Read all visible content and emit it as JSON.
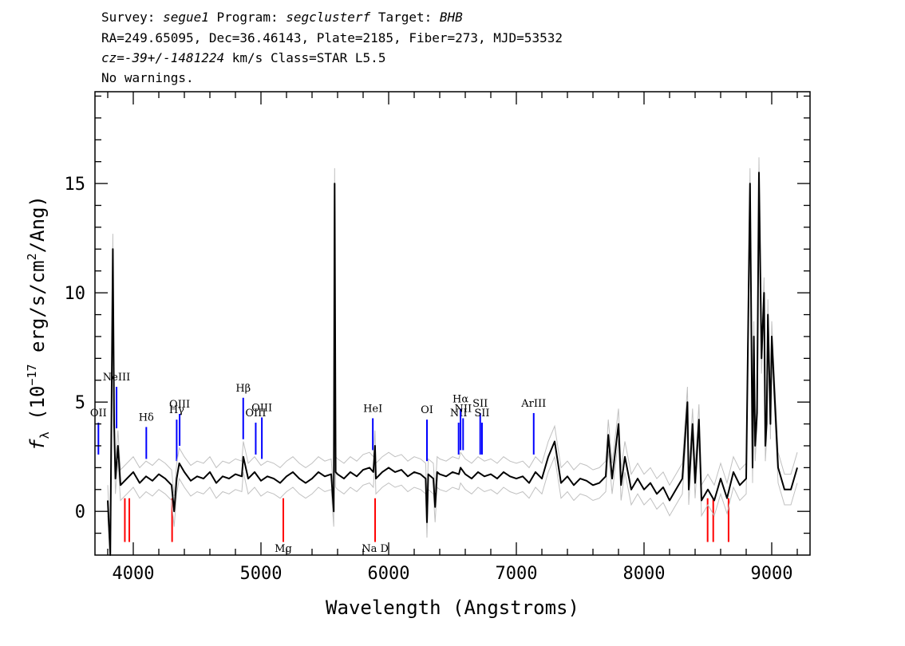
{
  "header": {
    "survey_label": "Survey:",
    "survey": "segue1",
    "program_label": "Program:",
    "program": "segclusterf",
    "target_label": "Target:",
    "target": "BHB",
    "line2": "RA=249.65095, Dec=36.46143, Plate=2185, Fiber=273, MJD=53532",
    "cz_label": "cz=",
    "cz_value": "-39+/-1481224",
    "cz_unit": "km/s",
    "class_text": "Class=STAR L5.5",
    "warnings": "No warnings."
  },
  "chart_data": {
    "type": "line",
    "xlabel": "Wavelength (Angstroms)",
    "ylabel_parts": [
      "f",
      "λ",
      " (10",
      "−17",
      " erg/s/cm",
      "2",
      "/Ang)"
    ],
    "xlim": [
      3700,
      9300
    ],
    "ylim": [
      -2,
      19.2
    ],
    "xticks": [
      4000,
      5000,
      6000,
      7000,
      8000,
      9000
    ],
    "xtick_labels": [
      "4000",
      "5000",
      "6000",
      "7000",
      "8000",
      "9000"
    ],
    "yticks": [
      0,
      5,
      10,
      15
    ],
    "ytick_labels": [
      "0",
      "5",
      "10",
      "15"
    ],
    "grid": false,
    "colors": {
      "spectrum": "#000000",
      "error": "#c0c0c0",
      "emission": "#0000ff",
      "absorption": "#ff0000"
    },
    "series": [
      {
        "x": [
          3800,
          3820,
          3840,
          3850,
          3860,
          3880,
          3900,
          3950,
          4000,
          4050,
          4100,
          4150,
          4200,
          4250,
          4300,
          4320,
          4340,
          4360,
          4400,
          4450,
          4500,
          4550,
          4600,
          4650,
          4700,
          4750,
          4800,
          4850,
          4862,
          4900,
          4950,
          5000,
          5050,
          5100,
          5150,
          5200,
          5250,
          5300,
          5350,
          5400,
          5450,
          5500,
          5550,
          5570,
          5577,
          5585,
          5600,
          5650,
          5700,
          5750,
          5800,
          5850,
          5880,
          5893,
          5900,
          5950,
          6000,
          6050,
          6100,
          6150,
          6200,
          6250,
          6290,
          6300,
          6310,
          6350,
          6364,
          6380,
          6400,
          6450,
          6500,
          6550,
          6563,
          6600,
          6650,
          6700,
          6750,
          6800,
          6850,
          6900,
          6950,
          7000,
          7050,
          7100,
          7150,
          7200,
          7250,
          7300,
          7350,
          7400,
          7450,
          7500,
          7550,
          7600,
          7650,
          7700,
          7720,
          7750,
          7800,
          7820,
          7850,
          7900,
          7950,
          8000,
          8050,
          8100,
          8150,
          8200,
          8250,
          8300,
          8340,
          8350,
          8380,
          8400,
          8430,
          8450,
          8500,
          8550,
          8600,
          8650,
          8700,
          8750,
          8800,
          8830,
          8850,
          8860,
          8870,
          8885,
          8900,
          8920,
          8940,
          8950,
          8960,
          8970,
          8990,
          9000,
          9050,
          9100,
          9150,
          9200
        ],
        "y": [
          0.5,
          -2,
          12,
          4,
          1.5,
          3,
          1.2,
          1.5,
          1.8,
          1.3,
          1.6,
          1.4,
          1.7,
          1.5,
          1.2,
          0,
          1.5,
          2.2,
          1.8,
          1.4,
          1.6,
          1.5,
          1.8,
          1.3,
          1.6,
          1.5,
          1.7,
          1.6,
          2.5,
          1.5,
          1.8,
          1.4,
          1.6,
          1.5,
          1.3,
          1.6,
          1.8,
          1.5,
          1.3,
          1.5,
          1.8,
          1.6,
          1.7,
          0,
          15,
          1.8,
          1.7,
          1.5,
          1.8,
          1.6,
          1.9,
          2.0,
          1.8,
          3.0,
          1.5,
          1.8,
          2.0,
          1.8,
          1.9,
          1.6,
          1.8,
          1.7,
          1.5,
          -0.5,
          1.7,
          1.5,
          0.2,
          1.8,
          1.7,
          1.6,
          1.8,
          1.7,
          2.0,
          1.7,
          1.5,
          1.8,
          1.6,
          1.7,
          1.5,
          1.8,
          1.6,
          1.5,
          1.6,
          1.3,
          1.8,
          1.5,
          2.5,
          3.2,
          1.3,
          1.6,
          1.2,
          1.5,
          1.4,
          1.2,
          1.3,
          1.6,
          3.5,
          1.5,
          4.0,
          1.2,
          2.5,
          1.0,
          1.5,
          1.0,
          1.3,
          0.8,
          1.1,
          0.5,
          1.0,
          1.5,
          5.0,
          1.0,
          4.0,
          1.3,
          4.2,
          0.5,
          1.0,
          0.5,
          1.5,
          0.6,
          1.8,
          1.2,
          1.5,
          15,
          2.0,
          8,
          3.0,
          4.5,
          15.5,
          7,
          10,
          3,
          4,
          9,
          4,
          8,
          2.0,
          1.0,
          1.0,
          2.0
        ]
      }
    ],
    "emission_lines": [
      {
        "label": "OII",
        "wave": 3727
      },
      {
        "label": "NeIII",
        "wave": 3869
      },
      {
        "label": "Hδ",
        "wave": 4102
      },
      {
        "label": "Hγ",
        "wave": 4340
      },
      {
        "label": "OIII",
        "wave": 4363
      },
      {
        "label": "Hβ",
        "wave": 4861
      },
      {
        "label": "OIII",
        "wave": 4959
      },
      {
        "label": "OIII",
        "wave": 5007
      },
      {
        "label": "HeI",
        "wave": 5876
      },
      {
        "label": "OI",
        "wave": 6300
      },
      {
        "label": "NII",
        "wave": 6548
      },
      {
        "label": "Hα",
        "wave": 6563
      },
      {
        "label": "NII",
        "wave": 6583
      },
      {
        "label": "SII",
        "wave": 6717
      },
      {
        "label": "SII",
        "wave": 6731
      },
      {
        "label": "ArIII",
        "wave": 7136
      }
    ],
    "absorption_lines": [
      {
        "label": "",
        "wave": 3934
      },
      {
        "label": "",
        "wave": 3969
      },
      {
        "label": "",
        "wave": 4304
      },
      {
        "label": "Mg",
        "wave": 5175
      },
      {
        "label": "Na D",
        "wave": 5894
      },
      {
        "label": "",
        "wave": 8498
      },
      {
        "label": "",
        "wave": 8542
      },
      {
        "label": "",
        "wave": 8662
      }
    ]
  }
}
